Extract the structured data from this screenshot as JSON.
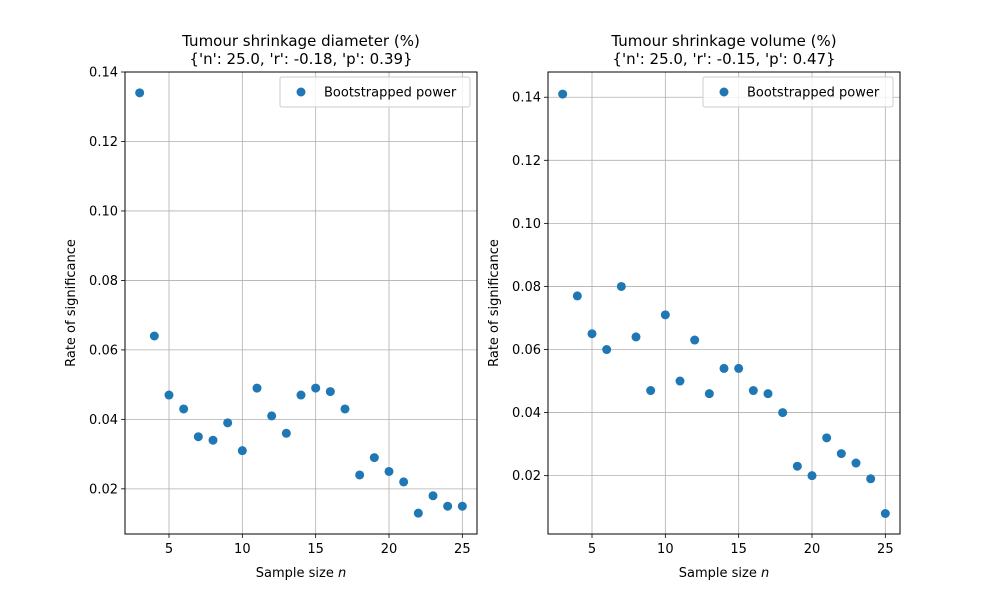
{
  "chart_data": [
    {
      "type": "scatter",
      "title": "Tumour shrinkage diameter (%)",
      "subtitle": "{'n': 25.0, 'r': -0.18, 'p': 0.39}",
      "xlabel": "Sample size",
      "xlabel_var": "n",
      "ylabel": "Rate of significance",
      "xlim": [
        2.0,
        26.0
      ],
      "ylim": [
        0.007,
        0.14
      ],
      "xticks": [
        5,
        10,
        15,
        20,
        25
      ],
      "yticks": [
        0.02,
        0.04,
        0.06,
        0.08,
        0.1,
        0.12,
        0.14
      ],
      "ytick_labels": [
        "0.02",
        "0.04",
        "0.06",
        "0.08",
        "0.10",
        "0.12",
        "0.14"
      ],
      "grid": true,
      "legend_position": "top-right",
      "color": "#1f77b4",
      "series": [
        {
          "name": "Bootstrapped power",
          "x": [
            3,
            4,
            5,
            6,
            7,
            8,
            9,
            10,
            11,
            12,
            13,
            14,
            15,
            16,
            17,
            18,
            19,
            20,
            21,
            22,
            23,
            24,
            25
          ],
          "y": [
            0.134,
            0.064,
            0.047,
            0.043,
            0.035,
            0.034,
            0.039,
            0.031,
            0.049,
            0.041,
            0.036,
            0.047,
            0.049,
            0.048,
            0.043,
            0.024,
            0.029,
            0.025,
            0.022,
            0.013,
            0.018,
            0.015,
            0.015
          ]
        }
      ]
    },
    {
      "type": "scatter",
      "title": "Tumour shrinkage volume (%)",
      "subtitle": "{'n': 25.0, 'r': -0.15, 'p': 0.47}",
      "xlabel": "Sample size",
      "xlabel_var": "n",
      "ylabel": "Rate of significance",
      "xlim": [
        2.0,
        26.0
      ],
      "ylim": [
        0.0015,
        0.148
      ],
      "xticks": [
        5,
        10,
        15,
        20,
        25
      ],
      "yticks": [
        0.02,
        0.04,
        0.06,
        0.08,
        0.1,
        0.12,
        0.14
      ],
      "ytick_labels": [
        "0.02",
        "0.04",
        "0.06",
        "0.08",
        "0.10",
        "0.12",
        "0.14"
      ],
      "grid": true,
      "legend_position": "top-right",
      "color": "#1f77b4",
      "series": [
        {
          "name": "Bootstrapped power",
          "x": [
            3,
            4,
            5,
            6,
            7,
            8,
            9,
            10,
            11,
            12,
            13,
            14,
            15,
            16,
            17,
            18,
            19,
            20,
            21,
            22,
            23,
            24,
            25
          ],
          "y": [
            0.141,
            0.077,
            0.065,
            0.06,
            0.08,
            0.064,
            0.047,
            0.071,
            0.05,
            0.063,
            0.046,
            0.054,
            0.054,
            0.047,
            0.046,
            0.04,
            0.023,
            0.02,
            0.032,
            0.027,
            0.024,
            0.019,
            0.008
          ]
        }
      ]
    }
  ]
}
